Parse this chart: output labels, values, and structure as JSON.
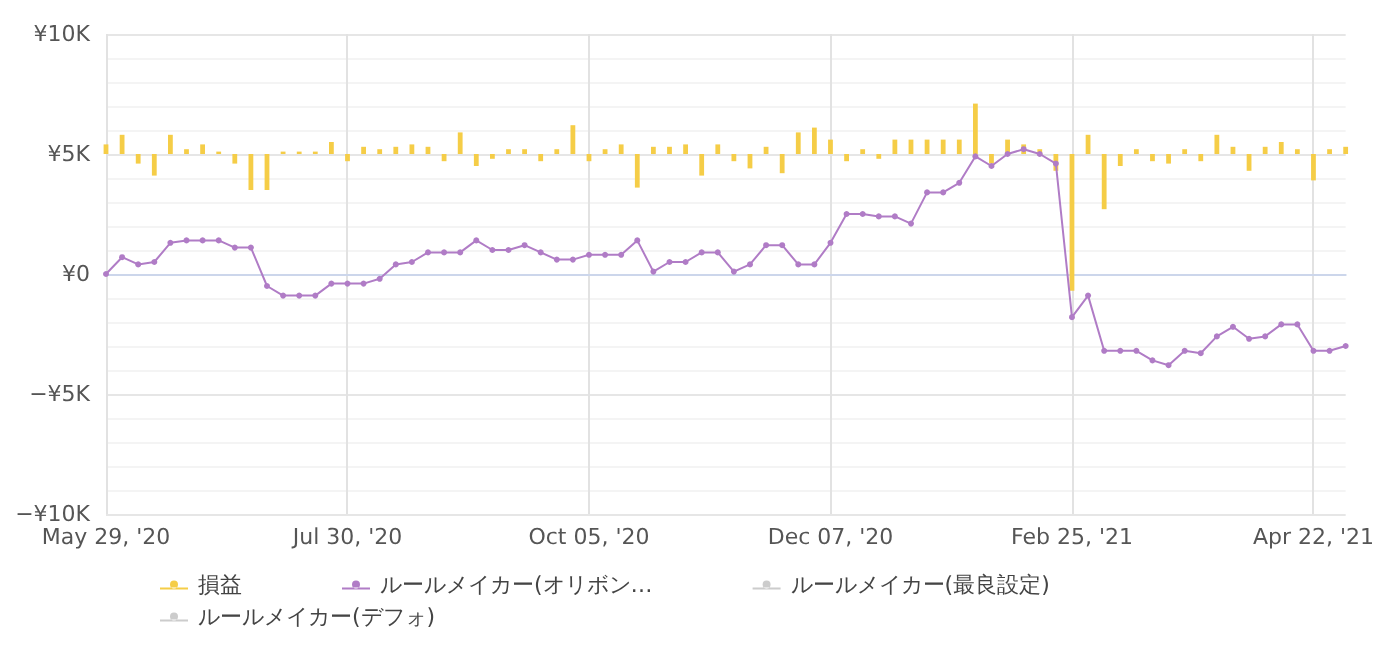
{
  "chart_data": {
    "type": "line",
    "categories": [
      "May 29, '20",
      null,
      null,
      null,
      null,
      null,
      null,
      null,
      null,
      null,
      null,
      null,
      null,
      null,
      null,
      "Jul 30, '20",
      null,
      null,
      null,
      null,
      null,
      null,
      null,
      null,
      null,
      null,
      null,
      null,
      null,
      null,
      "Oct 05, '20",
      null,
      null,
      null,
      null,
      null,
      null,
      null,
      null,
      null,
      null,
      null,
      null,
      null,
      null,
      "Dec 07, '20",
      null,
      null,
      null,
      null,
      null,
      null,
      null,
      null,
      null,
      null,
      null,
      null,
      null,
      null,
      "Feb 25, '21",
      null,
      null,
      null,
      null,
      null,
      null,
      null,
      null,
      null,
      null,
      null,
      null,
      null,
      null,
      "Apr 22, '21",
      null,
      null
    ],
    "series": [
      {
        "name": "損益",
        "type": "bar",
        "color": "#f5cd47",
        "base": [
          5000,
          5000,
          5000,
          5000,
          5000,
          5000,
          5000,
          5000,
          5000,
          5000,
          5000,
          5000,
          5000,
          5000,
          5000,
          5000,
          5000,
          5000,
          5000,
          5000,
          5000,
          5000,
          5000,
          5000,
          5000,
          5000,
          5000,
          5000,
          5000,
          5000,
          5000,
          5000,
          5000,
          5000,
          5000,
          5000,
          5000,
          5000,
          5000,
          5000,
          5000,
          5000,
          5000,
          5000,
          5000,
          5000,
          5000,
          5000,
          5000,
          5000,
          5000,
          5000,
          5000,
          5000,
          5000,
          5000,
          5000,
          5000,
          5000,
          5000,
          5000,
          5000,
          5000,
          5000,
          5000,
          5000,
          5000,
          5000,
          5000,
          5000,
          5000,
          5000,
          5000,
          5000,
          5000,
          5000,
          5000,
          5000
        ],
        "values": [
          400,
          800,
          -400,
          -900,
          800,
          200,
          400,
          100,
          -400,
          -1500,
          -1500,
          100,
          100,
          100,
          500,
          -300,
          300,
          200,
          300,
          400,
          300,
          -300,
          900,
          -500,
          -200,
          200,
          200,
          -300,
          200,
          1200,
          -300,
          200,
          400,
          -1400,
          300,
          300,
          400,
          -900,
          400,
          -300,
          -600,
          300,
          -800,
          900,
          1100,
          600,
          -300,
          200,
          -200,
          600,
          600,
          600,
          600,
          600,
          2100,
          -400,
          600,
          400,
          200,
          -700,
          -5700,
          800,
          -2300,
          -500,
          200,
          -300,
          -400,
          200,
          -300,
          800,
          300,
          -700,
          300,
          500,
          200,
          -1100,
          200,
          300
        ]
      },
      {
        "name": "ルールメイカー(オリボン…",
        "color": "#b07cc6",
        "values": [
          0,
          700,
          400,
          500,
          1300,
          1400,
          1400,
          1400,
          1100,
          1100,
          -500,
          -900,
          -900,
          -900,
          -400,
          -400,
          -400,
          -200,
          400,
          500,
          900,
          900,
          900,
          1400,
          1000,
          1000,
          1200,
          900,
          600,
          600,
          800,
          800,
          800,
          1400,
          100,
          500,
          500,
          900,
          900,
          100,
          400,
          1200,
          1200,
          400,
          400,
          1300,
          2500,
          2500,
          2400,
          2400,
          2100,
          3400,
          3400,
          3800,
          4900,
          4500,
          5000,
          5200,
          5000,
          4600,
          -1800,
          -900,
          -3200,
          -3200,
          -3200,
          -3600,
          -3800,
          -3200,
          -3300,
          -2600,
          -2200,
          -2700,
          -2600,
          -2100,
          -2100,
          -3200,
          -3200,
          -3000
        ]
      },
      {
        "name": "ルールメイカー(最良設定)",
        "color": "#cccccc",
        "values": [
          null,
          null,
          null,
          null,
          null,
          null,
          null,
          null,
          null,
          null,
          null,
          null,
          null,
          null,
          null,
          null,
          null,
          null,
          null,
          null,
          null,
          null,
          null,
          null,
          null,
          null,
          null,
          null,
          null,
          null,
          null,
          null,
          null,
          null,
          null,
          null,
          null,
          null,
          null,
          null,
          null,
          null,
          null,
          null,
          null,
          null,
          null,
          null,
          null,
          null,
          null,
          null,
          null,
          null,
          null,
          null,
          null,
          null,
          null,
          null,
          null,
          null,
          null,
          null,
          null,
          null,
          null,
          null,
          null,
          null,
          null,
          null,
          null,
          null,
          null,
          null,
          null,
          null
        ]
      },
      {
        "name": "ルールメイカー(デフォ)",
        "color": "#cccccc",
        "values": [
          null,
          null,
          null,
          null,
          null,
          null,
          null,
          null,
          null,
          null,
          null,
          null,
          null,
          null,
          null,
          null,
          null,
          null,
          null,
          null,
          null,
          null,
          null,
          null,
          null,
          null,
          null,
          null,
          null,
          null,
          null,
          null,
          null,
          null,
          null,
          null,
          null,
          null,
          null,
          null,
          null,
          null,
          null,
          null,
          null,
          null,
          null,
          null,
          null,
          null,
          null,
          null,
          null,
          null,
          null,
          null,
          null,
          null,
          null,
          null,
          null,
          null,
          null,
          null,
          null,
          null,
          null,
          null,
          null,
          null,
          null,
          null,
          null,
          null,
          null,
          null,
          null,
          null
        ]
      }
    ],
    "ylim": [
      -10000,
      10000
    ],
    "yticks": [
      {
        "value": -10000,
        "label": "−¥10K"
      },
      {
        "value": -5000,
        "label": "−¥5K"
      },
      {
        "value": 0,
        "label": "¥0"
      },
      {
        "value": 5000,
        "label": "¥5K"
      },
      {
        "value": 10000,
        "label": "¥10K"
      }
    ],
    "grid": true,
    "legend": "bottom",
    "marker": "circle",
    "line_style": "solid"
  }
}
